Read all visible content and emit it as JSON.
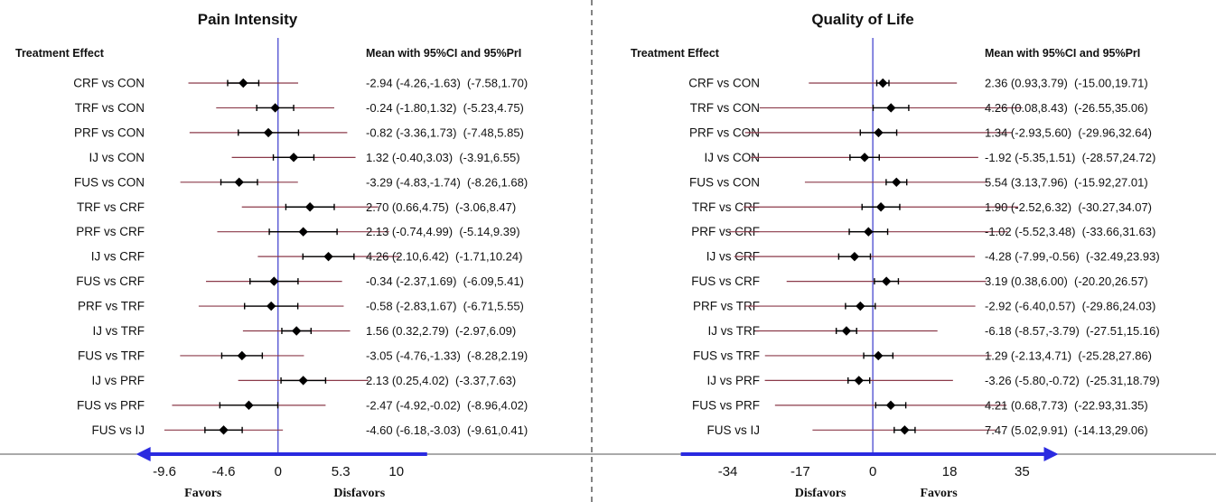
{
  "colors": {
    "ci": "#000000",
    "pi": "#8b3a4a",
    "axis_line": "#3a3acc",
    "arrow": "#2a2ae0",
    "text": "#111111"
  },
  "chart_data": [
    {
      "type": "forest",
      "title": "Pain Intensity",
      "left_header": "Treatment Effect",
      "right_header": "Mean with 95%CI and 95%PrI",
      "xlim": [
        -13.5,
        13
      ],
      "x_ticks": [
        -9.6,
        -4.6,
        0,
        5.3,
        10
      ],
      "x_tick_labels": [
        "-9.6",
        "-4.6",
        "0",
        "5.3",
        "10"
      ],
      "favors_left": "Favors",
      "favors_right": "Disfavors",
      "arrow_span": [
        -12,
        12.6
      ],
      "rows": [
        {
          "label": "CRF vs CON",
          "mean": -2.94,
          "ci": [
            -4.26,
            -1.63
          ],
          "pi": [
            -7.58,
            1.7
          ],
          "text": "-2.94 (-4.26,-1.63)  (-7.58,1.70)"
        },
        {
          "label": "TRF vs CON",
          "mean": -0.24,
          "ci": [
            -1.8,
            1.32
          ],
          "pi": [
            -5.23,
            4.75
          ],
          "text": "-0.24 (-1.80,1.32)  (-5.23,4.75)"
        },
        {
          "label": "PRF vs CON",
          "mean": -0.82,
          "ci": [
            -3.36,
            1.73
          ],
          "pi": [
            -7.48,
            5.85
          ],
          "text": "-0.82 (-3.36,1.73)  (-7.48,5.85)"
        },
        {
          "label": "IJ vs CON",
          "mean": 1.32,
          "ci": [
            -0.4,
            3.03
          ],
          "pi": [
            -3.91,
            6.55
          ],
          "text": "1.32 (-0.40,3.03)  (-3.91,6.55)"
        },
        {
          "label": "FUS vs CON",
          "mean": -3.29,
          "ci": [
            -4.83,
            -1.74
          ],
          "pi": [
            -8.26,
            1.68
          ],
          "text": "-3.29 (-4.83,-1.74)  (-8.26,1.68)"
        },
        {
          "label": "TRF vs CRF",
          "mean": 2.7,
          "ci": [
            0.66,
            4.75
          ],
          "pi": [
            -3.06,
            8.47
          ],
          "text": "2.70 (0.66,4.75)  (-3.06,8.47)"
        },
        {
          "label": "PRF vs CRF",
          "mean": 2.13,
          "ci": [
            -0.74,
            4.99
          ],
          "pi": [
            -5.14,
            9.39
          ],
          "text": "2.13 (-0.74,4.99)  (-5.14,9.39)"
        },
        {
          "label": "IJ vs CRF",
          "mean": 4.26,
          "ci": [
            2.1,
            6.42
          ],
          "pi": [
            -1.71,
            10.24
          ],
          "text": "4.26 (2.10,6.42)  (-1.71,10.24)"
        },
        {
          "label": "FUS vs CRF",
          "mean": -0.34,
          "ci": [
            -2.37,
            1.69
          ],
          "pi": [
            -6.09,
            5.41
          ],
          "text": "-0.34 (-2.37,1.69)  (-6.09,5.41)"
        },
        {
          "label": "PRF vs TRF",
          "mean": -0.58,
          "ci": [
            -2.83,
            1.67
          ],
          "pi": [
            -6.71,
            5.55
          ],
          "text": "-0.58 (-2.83,1.67)  (-6.71,5.55)"
        },
        {
          "label": "IJ vs TRF",
          "mean": 1.56,
          "ci": [
            0.32,
            2.79
          ],
          "pi": [
            -2.97,
            6.09
          ],
          "text": "1.56 (0.32,2.79)  (-2.97,6.09)"
        },
        {
          "label": "FUS vs TRF",
          "mean": -3.05,
          "ci": [
            -4.76,
            -1.33
          ],
          "pi": [
            -8.28,
            2.19
          ],
          "text": "-3.05 (-4.76,-1.33)  (-8.28,2.19)"
        },
        {
          "label": "IJ vs PRF",
          "mean": 2.13,
          "ci": [
            0.25,
            4.02
          ],
          "pi": [
            -3.37,
            7.63
          ],
          "text": "2.13 (0.25,4.02)  (-3.37,7.63)"
        },
        {
          "label": "FUS vs PRF",
          "mean": -2.47,
          "ci": [
            -4.92,
            -0.02
          ],
          "pi": [
            -8.96,
            4.02
          ],
          "text": "-2.47 (-4.92,-0.02)  (-8.96,4.02)"
        },
        {
          "label": "FUS vs IJ",
          "mean": -4.6,
          "ci": [
            -6.18,
            -3.03
          ],
          "pi": [
            -9.61,
            0.41
          ],
          "text": "-4.60 (-6.18,-3.03)  (-9.61,0.41)"
        }
      ]
    },
    {
      "type": "forest",
      "title": "Quality of Life",
      "left_header": "Treatment Effect",
      "right_header": "Mean with 95%CI and 95%PrI",
      "xlim": [
        -50,
        40
      ],
      "x_ticks": [
        -34,
        -17,
        0,
        18,
        35
      ],
      "x_tick_labels": [
        "-34",
        "-17",
        "0",
        "18",
        "35"
      ],
      "favors_left": "Disfavors",
      "favors_right": "Favors",
      "arrow_span": [
        -45,
        43.5
      ],
      "rows": [
        {
          "label": "CRF vs CON",
          "mean": 2.36,
          "ci": [
            0.93,
            3.79
          ],
          "pi": [
            -15.0,
            19.71
          ],
          "text": "2.36 (0.93,3.79)  (-15.00,19.71)"
        },
        {
          "label": "TRF vs CON",
          "mean": 4.26,
          "ci": [
            0.08,
            8.43
          ],
          "pi": [
            -26.55,
            35.06
          ],
          "text": "4.26 (0.08,8.43)  (-26.55,35.06)"
        },
        {
          "label": "PRF vs CON",
          "mean": 1.34,
          "ci": [
            -2.93,
            5.6
          ],
          "pi": [
            -29.96,
            32.64
          ],
          "text": "1.34 (-2.93,5.60)  (-29.96,32.64)"
        },
        {
          "label": "IJ vs CON",
          "mean": -1.92,
          "ci": [
            -5.35,
            1.51
          ],
          "pi": [
            -28.57,
            24.72
          ],
          "text": "-1.92 (-5.35,1.51)  (-28.57,24.72)"
        },
        {
          "label": "FUS vs CON",
          "mean": 5.54,
          "ci": [
            3.13,
            7.96
          ],
          "pi": [
            -15.92,
            27.01
          ],
          "text": "5.54 (3.13,7.96)  (-15.92,27.01)"
        },
        {
          "label": "TRF vs CRF",
          "mean": 1.9,
          "ci": [
            -2.52,
            6.32
          ],
          "pi": [
            -30.27,
            34.07
          ],
          "text": "1.90 (-2.52,6.32)  (-30.27,34.07)"
        },
        {
          "label": "PRF vs CRF",
          "mean": -1.02,
          "ci": [
            -5.52,
            3.48
          ],
          "pi": [
            -33.66,
            31.63
          ],
          "text": "-1.02 (-5.52,3.48)  (-33.66,31.63)"
        },
        {
          "label": "IJ vs CRF",
          "mean": -4.28,
          "ci": [
            -7.99,
            -0.56
          ],
          "pi": [
            -32.49,
            23.93
          ],
          "text": "-4.28 (-7.99,-0.56)  (-32.49,23.93)"
        },
        {
          "label": "FUS vs CRF",
          "mean": 3.19,
          "ci": [
            0.38,
            6.0
          ],
          "pi": [
            -20.2,
            26.57
          ],
          "text": "3.19 (0.38,6.00)  (-20.20,26.57)"
        },
        {
          "label": "PRF vs TRF",
          "mean": -2.92,
          "ci": [
            -6.4,
            0.57
          ],
          "pi": [
            -29.86,
            24.03
          ],
          "text": "-2.92 (-6.40,0.57)  (-29.86,24.03)"
        },
        {
          "label": "IJ vs TRF",
          "mean": -6.18,
          "ci": [
            -8.57,
            -3.79
          ],
          "pi": [
            -27.51,
            15.16
          ],
          "text": "-6.18 (-8.57,-3.79)  (-27.51,15.16)"
        },
        {
          "label": "FUS vs TRF",
          "mean": 1.29,
          "ci": [
            -2.13,
            4.71
          ],
          "pi": [
            -25.28,
            27.86
          ],
          "text": "1.29 (-2.13,4.71)  (-25.28,27.86)"
        },
        {
          "label": "IJ vs PRF",
          "mean": -3.26,
          "ci": [
            -5.8,
            -0.72
          ],
          "pi": [
            -25.31,
            18.79
          ],
          "text": "-3.26 (-5.80,-0.72)  (-25.31,18.79)"
        },
        {
          "label": "FUS vs PRF",
          "mean": 4.21,
          "ci": [
            0.68,
            7.73
          ],
          "pi": [
            -22.93,
            31.35
          ],
          "text": "4.21 (0.68,7.73)  (-22.93,31.35)"
        },
        {
          "label": "FUS vs IJ",
          "mean": 7.47,
          "ci": [
            5.02,
            9.91
          ],
          "pi": [
            -14.13,
            29.06
          ],
          "text": "7.47 (5.02,9.91)  (-14.13,29.06)"
        }
      ]
    }
  ]
}
